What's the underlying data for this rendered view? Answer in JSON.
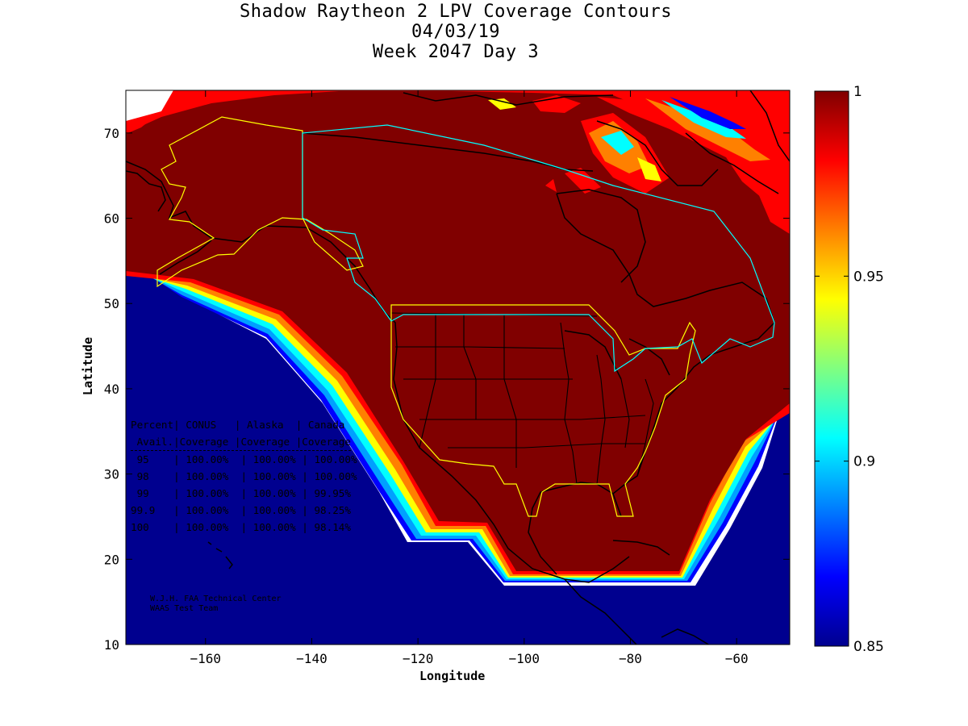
{
  "title": {
    "line1": "Shadow Raytheon 2 LPV Coverage Contours",
    "line2": "04/03/19",
    "line3": "Week 2047 Day 3"
  },
  "axes": {
    "xlabel": "Longitude",
    "ylabel": "Latitude",
    "xlim": [
      -175,
      -50
    ],
    "ylim": [
      10,
      75
    ],
    "xticks": [
      -160,
      -140,
      -120,
      -100,
      -80,
      -60
    ],
    "yticks": [
      10,
      20,
      30,
      40,
      50,
      60,
      70
    ]
  },
  "colorbar": {
    "min": 0.85,
    "max": 1,
    "ticks": [
      {
        "value": 1,
        "label": "1"
      },
      {
        "value": 0.95,
        "label": "0.95"
      },
      {
        "value": 0.9,
        "label": "0.9"
      },
      {
        "value": 0.85,
        "label": "0.85"
      }
    ],
    "colors": [
      "#00008f",
      "#0000ff",
      "#0080ff",
      "#00ffff",
      "#80ff80",
      "#ffff00",
      "#ff8000",
      "#ff0000",
      "#800000"
    ]
  },
  "coverage_table": {
    "header1": "Percent| CONUS   | Alaska  | Canada",
    "header2": " Avail.|Coverage |Coverage |Coverage",
    "rows": [
      " 95    | 100.00%  | 100.00% | 100.00%",
      " 98    | 100.00%  | 100.00% | 100.00%",
      " 99    | 100.00%  | 100.00% | 99.95%",
      "99.9   | 100.00%  | 100.00% | 98.25%",
      "100    | 100.00%  | 100.00% | 98.14%"
    ]
  },
  "credit": {
    "line1": "W.J.H. FAA Technical Center",
    "line2": "WAAS Test Team"
  },
  "colors": {
    "full_coverage": "#800000",
    "region_conus_alaska": "#ffff00",
    "region_canada": "#00ffff",
    "coast": "#000000"
  }
}
